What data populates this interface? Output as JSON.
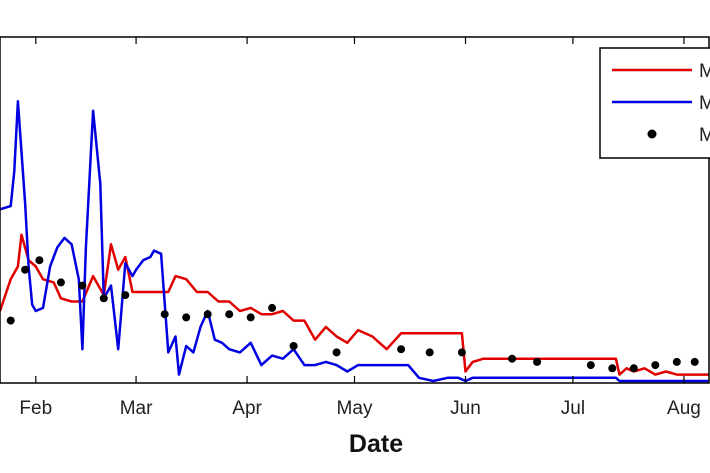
{
  "chart_data": {
    "type": "line",
    "title": "",
    "xlabel": "Date",
    "ylabel": "",
    "grid": false,
    "legend_position": "top-right",
    "x_ticks": [
      "Feb",
      "Mar",
      "Apr",
      "May",
      "Jun",
      "Jul",
      "Aug"
    ],
    "x_tick_dates": [
      "2014-02-01",
      "2014-03-01",
      "2014-04-01",
      "2014-05-01",
      "2014-06-01",
      "2014-07-01",
      "2014-08-01"
    ],
    "xlim": [
      "2014-01-22",
      "2014-08-08"
    ],
    "ylim": [
      0,
      1
    ],
    "series": [
      {
        "name": "M",
        "color": "#e00000",
        "style": "line",
        "x": [
          "2014-01-22",
          "2014-01-25",
          "2014-01-27",
          "2014-01-28",
          "2014-01-30",
          "2014-02-01",
          "2014-02-03",
          "2014-02-06",
          "2014-02-08",
          "2014-02-11",
          "2014-02-14",
          "2014-02-17",
          "2014-02-20",
          "2014-02-22",
          "2014-02-24",
          "2014-02-26",
          "2014-02-28",
          "2014-03-03",
          "2014-03-06",
          "2014-03-10",
          "2014-03-12",
          "2014-03-15",
          "2014-03-18",
          "2014-03-21",
          "2014-03-24",
          "2014-03-27",
          "2014-03-30",
          "2014-04-02",
          "2014-04-05",
          "2014-04-08",
          "2014-04-11",
          "2014-04-14",
          "2014-04-17",
          "2014-04-20",
          "2014-04-23",
          "2014-04-26",
          "2014-04-29",
          "2014-05-02",
          "2014-05-06",
          "2014-05-10",
          "2014-05-14",
          "2014-05-16",
          "2014-05-17",
          "2014-05-19",
          "2014-05-21",
          "2014-05-23",
          "2014-05-26",
          "2014-05-29",
          "2014-05-31",
          "2014-06-01",
          "2014-06-03",
          "2014-06-06",
          "2014-06-10",
          "2014-06-20",
          "2014-07-01",
          "2014-07-10",
          "2014-07-13",
          "2014-07-14",
          "2014-07-16",
          "2014-07-18",
          "2014-07-21",
          "2014-07-24",
          "2014-07-27",
          "2014-07-30",
          "2014-08-02",
          "2014-08-05",
          "2014-08-08"
        ],
        "y": [
          0.22,
          0.32,
          0.36,
          0.46,
          0.38,
          0.36,
          0.32,
          0.31,
          0.26,
          0.25,
          0.25,
          0.33,
          0.27,
          0.43,
          0.35,
          0.39,
          0.28,
          0.28,
          0.28,
          0.28,
          0.33,
          0.32,
          0.28,
          0.28,
          0.25,
          0.25,
          0.22,
          0.23,
          0.21,
          0.21,
          0.22,
          0.19,
          0.19,
          0.13,
          0.17,
          0.14,
          0.12,
          0.16,
          0.14,
          0.1,
          0.15,
          0.15,
          0.15,
          0.15,
          0.15,
          0.15,
          0.15,
          0.15,
          0.15,
          0.03,
          0.06,
          0.07,
          0.07,
          0.07,
          0.07,
          0.07,
          0.07,
          0.02,
          0.04,
          0.03,
          0.04,
          0.02,
          0.03,
          0.02,
          0.02,
          0.02,
          0.02
        ]
      },
      {
        "name": "M",
        "color": "#0000e0",
        "style": "line",
        "x": [
          "2014-01-22",
          "2014-01-25",
          "2014-01-26",
          "2014-01-27",
          "2014-01-28",
          "2014-01-29",
          "2014-01-30",
          "2014-01-31",
          "2014-02-01",
          "2014-02-03",
          "2014-02-05",
          "2014-02-07",
          "2014-02-09",
          "2014-02-11",
          "2014-02-13",
          "2014-02-14",
          "2014-02-15",
          "2014-02-17",
          "2014-02-19",
          "2014-02-20",
          "2014-02-22",
          "2014-02-24",
          "2014-02-26",
          "2014-02-28",
          "2014-03-01",
          "2014-03-03",
          "2014-03-05",
          "2014-03-06",
          "2014-03-08",
          "2014-03-10",
          "2014-03-12",
          "2014-03-13",
          "2014-03-15",
          "2014-03-17",
          "2014-03-19",
          "2014-03-21",
          "2014-03-23",
          "2014-03-25",
          "2014-03-27",
          "2014-03-30",
          "2014-04-02",
          "2014-04-05",
          "2014-04-08",
          "2014-04-11",
          "2014-04-14",
          "2014-04-17",
          "2014-04-20",
          "2014-04-23",
          "2014-04-26",
          "2014-04-29",
          "2014-05-02",
          "2014-05-06",
          "2014-05-10",
          "2014-05-14",
          "2014-05-16",
          "2014-05-19",
          "2014-05-23",
          "2014-05-27",
          "2014-05-30",
          "2014-06-01",
          "2014-06-03",
          "2014-06-06",
          "2014-06-10",
          "2014-06-20",
          "2014-07-01",
          "2014-07-10",
          "2014-07-13",
          "2014-07-14",
          "2014-07-16",
          "2014-07-18",
          "2014-07-21",
          "2014-07-25",
          "2014-07-29",
          "2014-08-02",
          "2014-08-05",
          "2014-08-08"
        ],
        "y": [
          0.54,
          0.55,
          0.66,
          0.88,
          0.72,
          0.56,
          0.36,
          0.24,
          0.22,
          0.23,
          0.36,
          0.42,
          0.45,
          0.43,
          0.32,
          0.1,
          0.42,
          0.85,
          0.62,
          0.26,
          0.3,
          0.1,
          0.37,
          0.33,
          0.35,
          0.38,
          0.39,
          0.41,
          0.4,
          0.09,
          0.14,
          0.02,
          0.11,
          0.09,
          0.17,
          0.22,
          0.13,
          0.12,
          0.1,
          0.09,
          0.12,
          0.05,
          0.08,
          0.07,
          0.1,
          0.05,
          0.05,
          0.06,
          0.05,
          0.03,
          0.05,
          0.05,
          0.05,
          0.05,
          0.05,
          0.01,
          0.0,
          0.01,
          0.01,
          0.0,
          0.01,
          0.01,
          0.01,
          0.01,
          0.01,
          0.01,
          0.01,
          0.0,
          0.0,
          0.0,
          0.0,
          0.0,
          0.0,
          0.0,
          0.0,
          0.0
        ]
      },
      {
        "name": "M",
        "color": "#000000",
        "style": "markers",
        "x": [
          "2014-01-25",
          "2014-01-29",
          "2014-02-02",
          "2014-02-08",
          "2014-02-14",
          "2014-02-20",
          "2014-02-26",
          "2014-03-09",
          "2014-03-15",
          "2014-03-21",
          "2014-03-27",
          "2014-04-02",
          "2014-04-08",
          "2014-04-14",
          "2014-04-26",
          "2014-05-14",
          "2014-05-22",
          "2014-05-31",
          "2014-06-14",
          "2014-06-21",
          "2014-07-06",
          "2014-07-12",
          "2014-07-18",
          "2014-07-24",
          "2014-07-30",
          "2014-08-04"
        ],
        "y": [
          0.19,
          0.35,
          0.38,
          0.31,
          0.3,
          0.26,
          0.27,
          0.21,
          0.2,
          0.21,
          0.21,
          0.2,
          0.23,
          0.11,
          0.09,
          0.1,
          0.09,
          0.09,
          0.07,
          0.06,
          0.05,
          0.04,
          0.04,
          0.05,
          0.06,
          0.06
        ]
      }
    ]
  }
}
